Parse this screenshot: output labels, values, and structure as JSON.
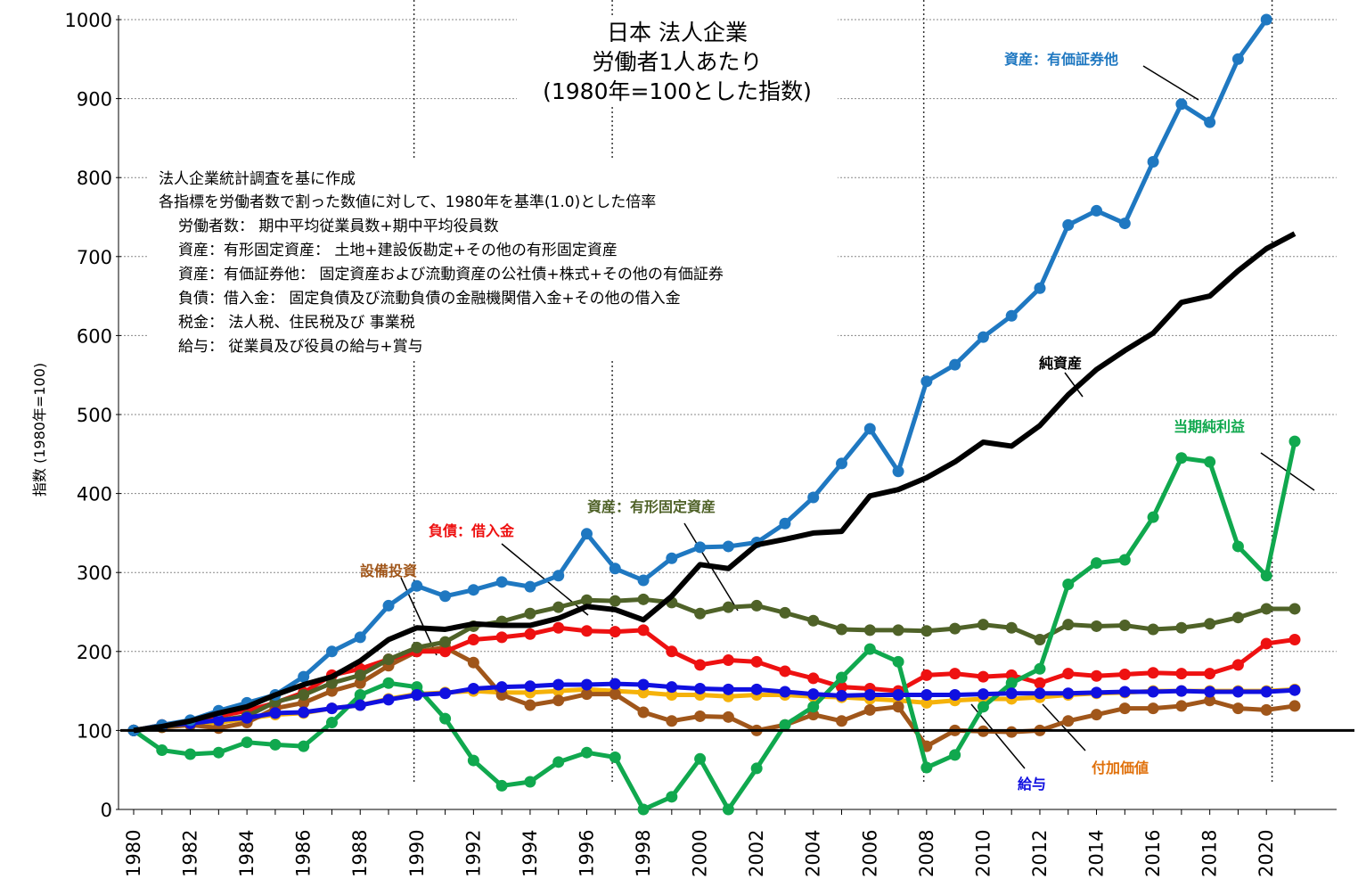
{
  "title_lines": [
    "日本 法人企業",
    "労働者1人あたり",
    "(1980年=100とした指数)"
  ],
  "notes": [
    "法人企業統計調査を基に作成",
    "各指標を労働者数で割った数値に対して、1980年を基準(1.0)とした倍率",
    "労働者数： 期中平均従業員数+期中平均役員数",
    "資産：有形固定資産： 土地+建設仮勘定+その他の有形固定資産",
    "資産：有価証券他： 固定資産および流動資産の公社債+株式+その他の有価証券",
    "負債：借入金： 固定負債及び流動負債の金融機関借入金+その他の借入金",
    "税金： 法人税、住民税及び 事業税",
    "給与： 従業員及び役員の給与+賞与"
  ],
  "chart_data": {
    "type": "line",
    "ylabel": "指数 (1980年=100)",
    "ylim": [
      0,
      1000
    ],
    "yticks": [
      "0",
      "100",
      "200",
      "300",
      "400",
      "500",
      "600",
      "700",
      "800",
      "900",
      "1000"
    ],
    "xlim": [
      1980,
      2021
    ],
    "xtick_labels": [
      "1980",
      "1982",
      "1984",
      "1986",
      "1988",
      "1990",
      "1992",
      "1994",
      "1996",
      "1998",
      "2000",
      "2002",
      "2004",
      "2006",
      "2008",
      "2010",
      "2012",
      "2014",
      "2016",
      "2018",
      "2020"
    ],
    "reference_line": 100,
    "vertical_markers": [
      1989.9,
      1996.9,
      2007.9,
      2020.2
    ],
    "x": [
      1980,
      1981,
      1982,
      1983,
      1984,
      1985,
      1986,
      1987,
      1988,
      1989,
      1990,
      1991,
      1992,
      1993,
      1994,
      1995,
      1996,
      1997,
      1998,
      1999,
      2000,
      2001,
      2002,
      2003,
      2004,
      2005,
      2006,
      2007,
      2008,
      2009,
      2010,
      2011,
      2012,
      2013,
      2014,
      2015,
      2016,
      2017,
      2018,
      2019,
      2020,
      2021
    ],
    "series": [
      {
        "name": "付加価値",
        "color": "#f5b20a",
        "markers": true,
        "values": [
          100,
          106,
          108,
          110,
          115,
          120,
          122,
          128,
          132,
          140,
          146,
          148,
          150,
          148,
          148,
          150,
          152,
          150,
          148,
          145,
          145,
          143,
          145,
          145,
          143,
          142,
          140,
          138,
          135,
          138,
          140,
          140,
          142,
          145,
          147,
          148,
          150,
          150,
          150,
          150,
          150,
          152
        ]
      },
      {
        "name": "設備投資",
        "color": "#a0561a",
        "markers": true,
        "values": [
          100,
          104,
          107,
          103,
          110,
          128,
          135,
          150,
          160,
          182,
          200,
          205,
          186,
          145,
          132,
          138,
          146,
          146,
          123,
          112,
          118,
          117,
          100,
          107,
          120,
          112,
          126,
          130,
          80,
          100,
          99,
          98,
          100,
          112,
          120,
          128,
          128,
          131,
          138,
          128,
          126,
          131
        ]
      },
      {
        "name": "負債：借入金",
        "color": "#ee1111",
        "markers": true,
        "values": [
          100,
          107,
          112,
          118,
          125,
          135,
          148,
          170,
          178,
          190,
          200,
          200,
          215,
          218,
          222,
          230,
          226,
          225,
          227,
          200,
          183,
          189,
          187,
          175,
          166,
          155,
          153,
          150,
          170,
          172,
          168,
          170,
          160,
          172,
          169,
          171,
          173,
          172,
          172,
          183,
          210,
          215
        ]
      },
      {
        "name": "資産：有形固定資産",
        "color": "#4f6228",
        "markers": true,
        "values": [
          100,
          105,
          109,
          113,
          118,
          136,
          145,
          160,
          170,
          190,
          205,
          212,
          232,
          238,
          248,
          256,
          265,
          264,
          266,
          262,
          248,
          256,
          258,
          249,
          239,
          228,
          227,
          227,
          226,
          229,
          234,
          230,
          215,
          234,
          232,
          233,
          228,
          230,
          235,
          243,
          254,
          254
        ]
      },
      {
        "name": "当期純利益",
        "color": "#10a84e",
        "markers": true,
        "values": [
          100,
          75,
          70,
          72,
          85,
          82,
          80,
          110,
          145,
          160,
          155,
          115,
          62,
          30,
          35,
          60,
          72,
          66,
          0,
          16,
          64,
          0,
          52,
          107,
          130,
          167,
          203,
          187,
          53,
          69,
          130,
          160,
          178,
          285,
          312,
          316,
          370,
          445,
          440,
          333,
          296,
          466
        ]
      },
      {
        "name": "給与",
        "color": "#1010e0",
        "markers": true,
        "values": [
          100,
          106,
          109,
          113,
          116,
          122,
          123,
          128,
          132,
          139,
          145,
          147,
          153,
          155,
          156,
          158,
          158,
          159,
          158,
          155,
          153,
          152,
          152,
          149,
          146,
          144,
          145,
          145,
          145,
          145,
          146,
          147,
          147,
          147,
          148,
          149,
          149,
          150,
          149,
          149,
          149,
          151
        ]
      },
      {
        "name": "資産：有価証券他",
        "color": "#1f78c1",
        "markers": true,
        "values": [
          100,
          107,
          113,
          125,
          135,
          145,
          168,
          200,
          218,
          258,
          283,
          270,
          278,
          288,
          282,
          296,
          349,
          305,
          290,
          318,
          332,
          333,
          338,
          362,
          395,
          438,
          482,
          428,
          542,
          563,
          598,
          625,
          660,
          740,
          758,
          742,
          820,
          893,
          870,
          950,
          1000,
          null
        ]
      },
      {
        "name": "純資産",
        "color": "#000000",
        "markers": false,
        "values": [
          100,
          105,
          112,
          122,
          130,
          145,
          158,
          168,
          188,
          215,
          230,
          228,
          235,
          233,
          233,
          242,
          257,
          253,
          240,
          270,
          310,
          305,
          335,
          342,
          350,
          352,
          397,
          405,
          420,
          440,
          465,
          460,
          486,
          525,
          557,
          581,
          603,
          642,
          650,
          682,
          710,
          729
        ]
      }
    ]
  },
  "labels": [
    {
      "text": "資産：有価証券他",
      "color": "#1f78c1"
    },
    {
      "text": "純資産",
      "color": "#000000"
    },
    {
      "text": "当期純利益",
      "color": "#10a84e"
    },
    {
      "text": "資産：有形固定資産",
      "color": "#4f6228"
    },
    {
      "text": "負債：借入金",
      "color": "#ee1111"
    },
    {
      "text": "設備投資",
      "color": "#a0561a"
    },
    {
      "text": "給与",
      "color": "#1010e0"
    },
    {
      "text": "付加価値",
      "color": "#e0700a"
    }
  ]
}
